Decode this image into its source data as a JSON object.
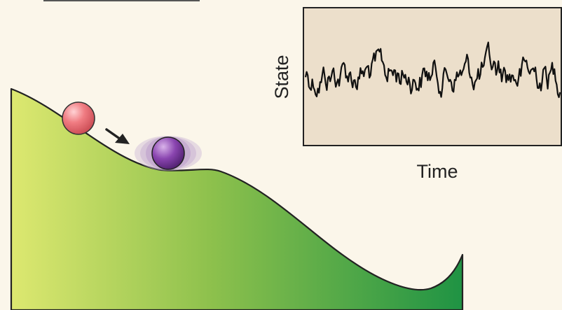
{
  "inset_plot": {
    "ylabel": "State",
    "xlabel": "Time",
    "colors": {
      "panel": "#ecdfcb",
      "frame": "#222222",
      "trace": "#111111"
    }
  },
  "landscape": {
    "colors": {
      "left": "#dde870",
      "mid": "#8cc04c",
      "right": "#1f9344",
      "outline": "#222222"
    }
  },
  "balls": {
    "falling": {
      "color": "#f07c82"
    },
    "settled": {
      "color": "#7b3fa0",
      "blur_color": "#cdb8d6"
    }
  },
  "arrow": {
    "color": "#222222"
  }
}
